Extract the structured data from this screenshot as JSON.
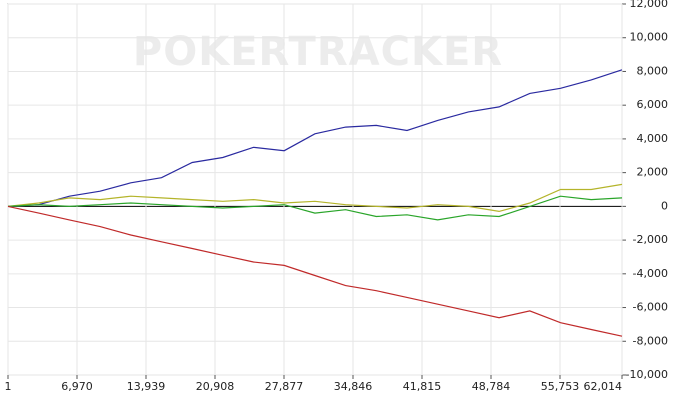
{
  "chart_data": {
    "type": "line",
    "watermark": "POKERTRACKER",
    "x": [
      1,
      3100,
      6200,
      9300,
      12400,
      15500,
      18600,
      21700,
      24800,
      27900,
      31000,
      34100,
      37200,
      40300,
      43400,
      46500,
      49600,
      52700,
      55800,
      58900,
      62014
    ],
    "series": [
      {
        "color": "#2a2aa0",
        "values": [
          0,
          100,
          600,
          900,
          1400,
          1700,
          2600,
          2900,
          3500,
          3300,
          4300,
          4700,
          4800,
          4500,
          5100,
          5600,
          5900,
          6700,
          7000,
          7500,
          8100
        ]
      },
      {
        "color": "#b4b42a",
        "values": [
          0,
          200,
          500,
          400,
          600,
          500,
          400,
          300,
          400,
          200,
          300,
          100,
          0,
          -100,
          100,
          0,
          -300,
          200,
          1000,
          1000,
          1300
        ]
      },
      {
        "color": "#2aa52a",
        "values": [
          0,
          100,
          0,
          100,
          200,
          100,
          0,
          -100,
          0,
          100,
          -400,
          -200,
          -600,
          -500,
          -800,
          -500,
          -600,
          0,
          600,
          400,
          500
        ]
      },
      {
        "color": "#c02a2a",
        "values": [
          0,
          -400,
          -800,
          -1200,
          -1700,
          -2100,
          -2500,
          -2900,
          -3300,
          -3500,
          -4100,
          -4700,
          -5000,
          -5400,
          -5800,
          -6200,
          -6600,
          -6200,
          -6900,
          -7300,
          -7700
        ]
      }
    ],
    "xlim": [
      1,
      62014
    ],
    "xticks": [
      1,
      {
        "value": 6970,
        "label": "6,970"
      },
      {
        "value": 13939,
        "label": "13,939"
      },
      {
        "value": 20908,
        "label": "20,908"
      },
      {
        "value": 27877,
        "label": "27,877"
      },
      {
        "value": 34846,
        "label": "34,846"
      },
      {
        "value": 41815,
        "label": "41,815"
      },
      {
        "value": 48784,
        "label": "48,784"
      },
      {
        "value": 55753,
        "label": "55,753"
      },
      {
        "value": 62014,
        "label": "62,014"
      }
    ],
    "ylim": [
      -10000,
      12000
    ],
    "yticks": [
      {
        "value": -10000,
        "label": "-10,000"
      },
      {
        "value": -8000,
        "label": "-8,000"
      },
      {
        "value": -6000,
        "label": "-6,000"
      },
      {
        "value": -4000,
        "label": "-4,000"
      },
      {
        "value": -2000,
        "label": "-2,000"
      },
      0,
      {
        "value": 2000,
        "label": "2,000"
      },
      {
        "value": 4000,
        "label": "4,000"
      },
      {
        "value": 6000,
        "label": "6,000"
      },
      {
        "value": 8000,
        "label": "8,000"
      },
      {
        "value": 10000,
        "label": "10,000"
      },
      {
        "value": 12000,
        "label": "12,000"
      }
    ],
    "grid": true
  }
}
